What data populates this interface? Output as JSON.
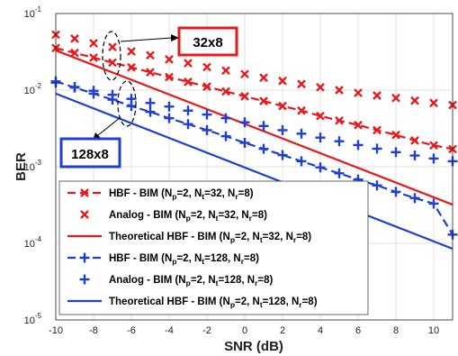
{
  "chart_data": {
    "type": "line",
    "xlabel": "SNR (dB)",
    "ylabel": "BER",
    "xlim": [
      -10,
      11
    ],
    "ylim": [
      1e-05,
      0.1
    ],
    "yscale": "log",
    "grid": true,
    "legend_position": "bottom-left",
    "x_ticks": [
      "-10",
      "-8",
      "-6",
      "-4",
      "-2",
      "0",
      "2",
      "4",
      "6",
      "8",
      "10"
    ],
    "y_ticks": [
      {
        "base": "10",
        "exp": "-5"
      },
      {
        "base": "10",
        "exp": "-4"
      },
      {
        "base": "10",
        "exp": "-3"
      },
      {
        "base": "10",
        "exp": "-2"
      },
      {
        "base": "10",
        "exp": "-1"
      }
    ],
    "series": [
      {
        "name": "HBF - BIM (Np=2, Nt=32, Nr=8)",
        "legend": {
          "main": "HBF - BIM (N",
          "parts": [
            [
              "p",
              "=2, N"
            ],
            [
              "t",
              "=32, N"
            ],
            [
              "r",
              "=8)"
            ]
          ]
        },
        "color": "#e8191c",
        "style": "dashed",
        "marker": "x",
        "x": [
          -10,
          -9,
          -8,
          -7,
          -6,
          -5,
          -4,
          -3,
          -2,
          -1,
          0,
          1,
          2,
          3,
          4,
          5,
          6,
          7,
          8,
          9,
          10,
          11
        ],
        "y": [
          0.0354,
          0.0306,
          0.0265,
          0.0229,
          0.0198,
          0.0171,
          0.0148,
          0.0128,
          0.0111,
          0.0096,
          0.0083,
          0.0072,
          0.0062,
          0.0054,
          0.0046,
          0.004,
          0.0035,
          0.003,
          0.0026,
          0.0022,
          0.0019,
          0.0017
        ]
      },
      {
        "name": "Analog - BIM (Np=2, Nt=32, Nr=8)",
        "legend": {
          "main": "Analog - BIM (N",
          "parts": [
            [
              "p",
              "=2, N"
            ],
            [
              "t",
              "=32, N"
            ],
            [
              "r",
              "=8)"
            ]
          ]
        },
        "color": "#e8191c",
        "style": "none",
        "marker": "x",
        "x": [
          -10,
          -9,
          -8,
          -7,
          -6,
          -5,
          -4,
          -3,
          -2,
          -1,
          0,
          1,
          2,
          3,
          4,
          5,
          6,
          7,
          8,
          9,
          10,
          11
        ],
        "y": [
          0.053,
          0.047,
          0.041,
          0.0365,
          0.032,
          0.0285,
          0.0252,
          0.0225,
          0.02,
          0.018,
          0.0162,
          0.0145,
          0.0132,
          0.012,
          0.0109,
          0.01,
          0.0092,
          0.0085,
          0.0079,
          0.0073,
          0.0068,
          0.0064
        ]
      },
      {
        "name": "Theoretical HBF - BIM (Np=2, Nt=32, Nr=8)",
        "legend": {
          "main": "Theoretical  HBF - BIM (N",
          "parts": [
            [
              "p",
              "=2, N"
            ],
            [
              "t",
              "=32, N"
            ],
            [
              "r",
              "=8)"
            ]
          ]
        },
        "color": "#e8191c",
        "style": "solid",
        "marker": "none",
        "x": [
          -10,
          11
        ],
        "y": [
          0.033,
          0.00032
        ]
      },
      {
        "name": "HBF - BIM (Np=2, Nt=128, Nr=8)",
        "legend": {
          "main": "HBF - BIM (N",
          "parts": [
            [
              "p",
              "=2, N"
            ],
            [
              "t",
              "=128, N"
            ],
            [
              "r",
              "=8)"
            ]
          ]
        },
        "color": "#1f3fd4",
        "style": "dashed",
        "marker": "+",
        "x": [
          -10,
          -9,
          -8,
          -7,
          -6,
          -5,
          -4,
          -3,
          -2,
          -1,
          0,
          1,
          2,
          3,
          4,
          5,
          6,
          7,
          8,
          9,
          10,
          11
        ],
        "y": [
          0.013,
          0.0108,
          0.009,
          0.0075,
          0.0062,
          0.0052,
          0.0043,
          0.0036,
          0.003,
          0.0025,
          0.00205,
          0.00171,
          0.00142,
          0.00118,
          0.00098,
          0.00082,
          0.00068,
          0.00057,
          0.00047,
          0.00039,
          0.00033,
          0.00013
        ]
      },
      {
        "name": "Analog - BIM (Np=2, Nt=128, Nr=8)",
        "legend": {
          "main": "Analog - BIM (N",
          "parts": [
            [
              "p",
              "=2, N"
            ],
            [
              "t",
              "=128, N"
            ],
            [
              "r",
              "=8)"
            ]
          ]
        },
        "color": "#1f3fd4",
        "style": "none",
        "marker": "+",
        "x": [
          -10,
          -9,
          -8,
          -7,
          -6,
          -5,
          -4,
          -3,
          -2,
          -1,
          0,
          1,
          2,
          3,
          4,
          5,
          6,
          7,
          8,
          9,
          10,
          11
        ],
        "y": [
          0.0125,
          0.011,
          0.0098,
          0.0087,
          0.0077,
          0.0068,
          0.0061,
          0.0054,
          0.0048,
          0.0043,
          0.0038,
          0.0034,
          0.003,
          0.0027,
          0.0024,
          0.00215,
          0.00192,
          0.00172,
          0.00155,
          0.0014,
          0.00128,
          0.00118
        ]
      },
      {
        "name": "Theoretical HBF - BIM (Np=2, Nt=128, Nr=8)",
        "legend": {
          "main": "Theoretical  HBF - BIM (N",
          "parts": [
            [
              "p",
              "=2, N"
            ],
            [
              "t",
              "=128, N"
            ],
            [
              "r",
              "=8)"
            ]
          ]
        },
        "color": "#1f3fd4",
        "style": "solid",
        "marker": "none",
        "x": [
          -10,
          11
        ],
        "y": [
          0.009,
          8.5e-05
        ]
      }
    ],
    "annotations": [
      {
        "text": "32x8",
        "color": "#e8191c",
        "target": [
          -7,
          0.025
        ]
      },
      {
        "text": "128x8",
        "color": "#1f3fd4",
        "target": [
          -7,
          0.006
        ]
      }
    ]
  }
}
